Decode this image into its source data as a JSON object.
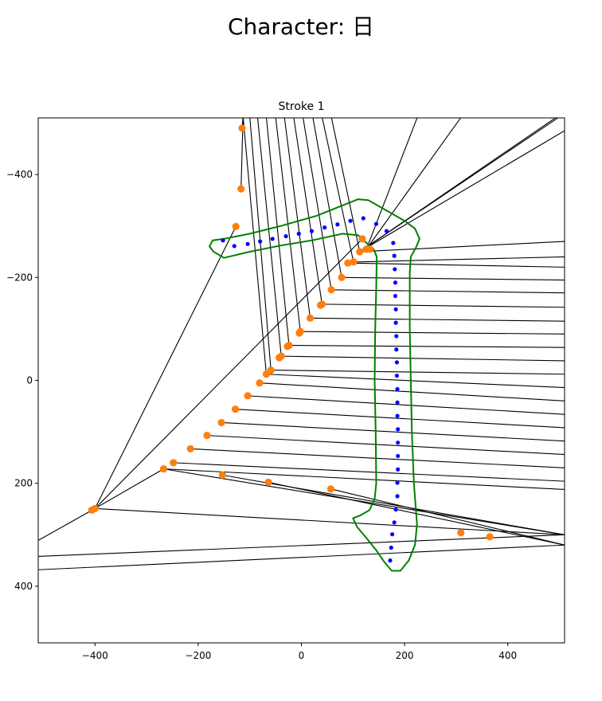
{
  "page": {
    "title": "Character: 日"
  },
  "chart_data": {
    "type": "scatter",
    "title": "Stroke 1",
    "xlabel": "",
    "ylabel": "",
    "xlim": [
      -510,
      510
    ],
    "ylim": [
      510,
      -510
    ],
    "y_inverted": true,
    "grid": false,
    "x_ticks": [
      -400,
      -200,
      0,
      200,
      400
    ],
    "y_ticks": [
      -400,
      -200,
      0,
      200,
      400
    ],
    "colors": {
      "outline": "#008000",
      "centerline": "#0000ff",
      "points": "#ff7f0e",
      "lines": "#000000"
    },
    "series": [
      {
        "kind": "outline",
        "points": [
          [
            -150,
            -275
          ],
          [
            -100,
            -285
          ],
          [
            -40,
            -300
          ],
          [
            30,
            -320
          ],
          [
            80,
            -340
          ],
          [
            110,
            -352
          ],
          [
            130,
            -350
          ],
          [
            165,
            -330
          ],
          [
            200,
            -310
          ],
          [
            220,
            -295
          ],
          [
            229,
            -275
          ],
          [
            222,
            -258
          ],
          [
            212,
            -240
          ],
          [
            210,
            -210
          ],
          [
            210,
            -100
          ],
          [
            212,
            0
          ],
          [
            214,
            100
          ],
          [
            218,
            200
          ],
          [
            224,
            280
          ],
          [
            220,
            320
          ],
          [
            208,
            350
          ],
          [
            192,
            370
          ],
          [
            175,
            370
          ],
          [
            160,
            352
          ],
          [
            145,
            330
          ],
          [
            125,
            305
          ],
          [
            108,
            285
          ],
          [
            100,
            268
          ],
          [
            115,
            262
          ],
          [
            132,
            252
          ],
          [
            142,
            230
          ],
          [
            145,
            200
          ],
          [
            144,
            100
          ],
          [
            142,
            0
          ],
          [
            143,
            -100
          ],
          [
            145,
            -180
          ],
          [
            146,
            -240
          ],
          [
            140,
            -255
          ],
          [
            125,
            -268
          ],
          [
            110,
            -282
          ],
          [
            80,
            -285
          ],
          [
            20,
            -272
          ],
          [
            -40,
            -262
          ],
          [
            -100,
            -250
          ],
          [
            -150,
            -238
          ],
          [
            -170,
            -250
          ],
          [
            -178,
            -260
          ],
          [
            -172,
            -272
          ],
          [
            -150,
            -275
          ]
        ]
      },
      {
        "kind": "centerline",
        "points": [
          [
            -152,
            -272
          ],
          [
            -130,
            -261
          ],
          [
            -104,
            -265
          ],
          [
            -80,
            -270
          ],
          [
            -56,
            -275
          ],
          [
            -30,
            -280
          ],
          [
            -5,
            -285
          ],
          [
            20,
            -290
          ],
          [
            45,
            -297
          ],
          [
            70,
            -303
          ],
          [
            95,
            -310
          ],
          [
            120,
            -315
          ],
          [
            145,
            -304
          ],
          [
            165,
            -290
          ],
          [
            178,
            -267
          ],
          [
            180,
            -242
          ],
          [
            181,
            -216
          ],
          [
            182,
            -190
          ],
          [
            182,
            -164
          ],
          [
            183,
            -138
          ],
          [
            183,
            -112
          ],
          [
            184,
            -86
          ],
          [
            184,
            -60
          ],
          [
            185,
            -35
          ],
          [
            185,
            -9
          ],
          [
            186,
            17
          ],
          [
            186,
            43
          ],
          [
            186,
            69
          ],
          [
            187,
            95
          ],
          [
            187,
            121
          ],
          [
            187,
            147
          ],
          [
            187,
            173
          ],
          [
            186,
            199
          ],
          [
            186,
            225
          ],
          [
            183,
            251
          ],
          [
            180,
            276
          ],
          [
            176,
            299
          ],
          [
            174,
            325
          ],
          [
            172,
            350
          ]
        ]
      },
      {
        "kind": "points",
        "points": [
          [
            -115,
            -490
          ],
          [
            -117,
            -372
          ],
          [
            -127,
            -299
          ],
          [
            118,
            -275
          ],
          [
            133,
            -255
          ],
          [
            126,
            -255
          ],
          [
            113,
            -250
          ],
          [
            101,
            -230
          ],
          [
            90,
            -228
          ],
          [
            78,
            -200
          ],
          [
            58,
            -176
          ],
          [
            40,
            -148
          ],
          [
            37,
            -146
          ],
          [
            17,
            -121
          ],
          [
            -2,
            -95
          ],
          [
            -4,
            -92
          ],
          [
            -24,
            -68
          ],
          [
            -27,
            -66
          ],
          [
            -39,
            -47
          ],
          [
            -43,
            -44
          ],
          [
            -59,
            -20
          ],
          [
            -68,
            -12
          ],
          [
            -81,
            5
          ],
          [
            -104,
            30
          ],
          [
            -128,
            56
          ],
          [
            -155,
            82
          ],
          [
            -183,
            107
          ],
          [
            -215,
            133
          ],
          [
            -248,
            160
          ],
          [
            -267,
            172
          ],
          [
            -153,
            184
          ],
          [
            -64,
            198
          ],
          [
            57,
            211
          ],
          [
            309,
            296
          ],
          [
            365,
            304
          ],
          [
            -406,
            252
          ],
          [
            -400,
            249
          ]
        ]
      },
      {
        "kind": "lines",
        "segments": [
          [
            [
              -115,
              -490
            ],
            [
              -113,
              -512
            ]
          ],
          [
            [
              -117,
              -372
            ],
            [
              -113,
              -512
            ]
          ],
          [
            [
              -127,
              -299
            ],
            [
              -400,
              249
            ]
          ],
          [
            [
              -400,
              249
            ],
            [
              -510,
              311
            ]
          ],
          [
            [
              -400,
              249
            ],
            [
              510,
              300
            ]
          ],
          [
            [
              -267,
              172
            ],
            [
              510,
              300
            ]
          ],
          [
            [
              -153,
              184
            ],
            [
              510,
              300
            ]
          ],
          [
            [
              -64,
              198
            ],
            [
              510,
              320
            ]
          ],
          [
            [
              57,
              211
            ],
            [
              510,
              320
            ]
          ],
          [
            [
              -510,
              342
            ],
            [
              510,
              300
            ]
          ],
          [
            [
              -510,
              368
            ],
            [
              510,
              320
            ]
          ],
          [
            [
              -400,
              249
            ],
            [
              118,
              -275
            ]
          ],
          [
            [
              -267,
              172
            ],
            [
              -400,
              249
            ]
          ],
          [
            [
              113,
              -250
            ],
            [
              500,
              -512
            ]
          ],
          [
            [
              113,
              -250
            ],
            [
              495,
              -512
            ]
          ],
          [
            [
              113,
              -250
            ],
            [
              510,
              -485
            ]
          ],
          [
            [
              126,
              -255
            ],
            [
              225,
              -512
            ]
          ],
          [
            [
              126,
              -255
            ],
            [
              310,
              -512
            ]
          ],
          [
            [
              113,
              -250
            ],
            [
              510,
              -270
            ]
          ],
          [
            [
              101,
              -230
            ],
            [
              510,
              -240
            ]
          ],
          [
            [
              90,
              -228
            ],
            [
              510,
              -220
            ]
          ],
          [
            [
              78,
              -200
            ],
            [
              510,
              -195
            ]
          ],
          [
            [
              58,
              -176
            ],
            [
              510,
              -170
            ]
          ],
          [
            [
              40,
              -148
            ],
            [
              510,
              -142
            ]
          ],
          [
            [
              17,
              -121
            ],
            [
              510,
              -115
            ]
          ],
          [
            [
              -2,
              -95
            ],
            [
              510,
              -90
            ]
          ],
          [
            [
              -24,
              -68
            ],
            [
              510,
              -64
            ]
          ],
          [
            [
              -39,
              -47
            ],
            [
              510,
              -38
            ]
          ],
          [
            [
              -59,
              -20
            ],
            [
              510,
              -12
            ]
          ],
          [
            [
              -68,
              -12
            ],
            [
              510,
              14
            ]
          ],
          [
            [
              -81,
              5
            ],
            [
              510,
              40
            ]
          ],
          [
            [
              -104,
              30
            ],
            [
              510,
              66
            ]
          ],
          [
            [
              -128,
              56
            ],
            [
              510,
              92
            ]
          ],
          [
            [
              -155,
              82
            ],
            [
              510,
              118
            ]
          ],
          [
            [
              -183,
              107
            ],
            [
              510,
              144
            ]
          ],
          [
            [
              -215,
              133
            ],
            [
              510,
              170
            ]
          ],
          [
            [
              -248,
              160
            ],
            [
              510,
              196
            ]
          ],
          [
            [
              -267,
              172
            ],
            [
              510,
              212
            ]
          ],
          [
            [
              -113,
              -512
            ],
            [
              -68,
              -12
            ]
          ],
          [
            [
              -100,
              -512
            ],
            [
              -59,
              -20
            ]
          ],
          [
            [
              -85,
              -512
            ],
            [
              -39,
              -47
            ]
          ],
          [
            [
              -68,
              -512
            ],
            [
              -24,
              -68
            ]
          ],
          [
            [
              -50,
              -512
            ],
            [
              -2,
              -95
            ]
          ],
          [
            [
              -33,
              -512
            ],
            [
              17,
              -121
            ]
          ],
          [
            [
              -15,
              -512
            ],
            [
              40,
              -148
            ]
          ],
          [
            [
              3,
              -512
            ],
            [
              58,
              -176
            ]
          ],
          [
            [
              22,
              -512
            ],
            [
              78,
              -200
            ]
          ],
          [
            [
              40,
              -512
            ],
            [
              101,
              -230
            ]
          ],
          [
            [
              58,
              -512
            ],
            [
              113,
              -250
            ]
          ]
        ]
      }
    ]
  }
}
